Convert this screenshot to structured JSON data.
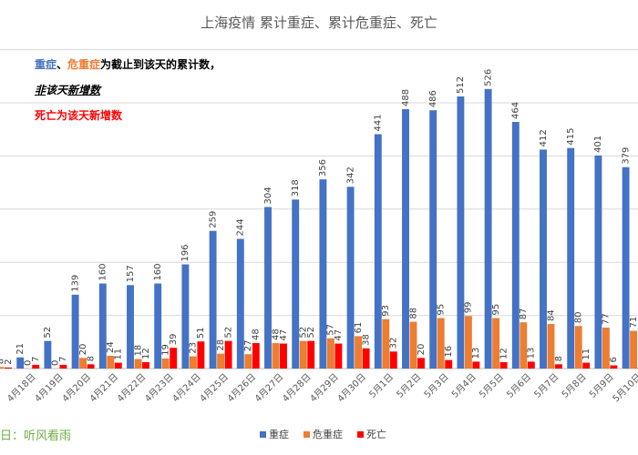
{
  "chart_data": {
    "type": "bar",
    "title": "上海疫情 累计重症、累计危重症、死亡",
    "categories": [
      "4月18日",
      "4月19日",
      "4月20日",
      "4月21日",
      "4月22日",
      "4月23日",
      "4月24日",
      "4月25日",
      "4月26日",
      "4月27日",
      "4月28日",
      "4月29日",
      "4月30日",
      "5月1日",
      "5月2日",
      "5月3日",
      "5月4日",
      "5月5日",
      "5月6日",
      "5月7日",
      "5月8日",
      "5月9日",
      "5月10日",
      "5月11日"
    ],
    "first_partial": {
      "values": [
        8,
        3,
        2
      ],
      "labels": [
        "1",
        "8",
        "2"
      ]
    },
    "series": [
      {
        "name": "重症",
        "color": "#4472C4",
        "values": [
          21,
          52,
          139,
          160,
          157,
          160,
          196,
          259,
          244,
          304,
          318,
          356,
          342,
          441,
          488,
          486,
          512,
          526,
          464,
          412,
          415,
          401,
          379,
          null
        ],
        "labels": [
          "21",
          "52",
          "139",
          "160",
          "157",
          "160",
          "196",
          "259",
          "244",
          "304",
          "318",
          "356",
          "342",
          "441",
          "488",
          "486",
          "512",
          "526",
          "464",
          "412",
          "415",
          "401",
          "379",
          ""
        ]
      },
      {
        "name": "危重症",
        "color": "#ED7D31",
        "values": [
          0,
          0,
          20,
          24,
          18,
          19,
          23,
          28,
          27,
          48,
          52,
          57,
          61,
          93,
          88,
          95,
          99,
          95,
          87,
          84,
          80,
          77,
          71,
          null
        ],
        "labels": [
          "0",
          "0",
          "20",
          "24",
          "18",
          "19",
          "23",
          "28",
          "27",
          "48",
          "52",
          "57",
          "61",
          "93",
          "88",
          "95",
          "99",
          "95",
          "87",
          "84",
          "80",
          "77",
          "71",
          ""
        ]
      },
      {
        "name": "死亡",
        "color": "#FF0000",
        "values": [
          7,
          7,
          8,
          11,
          12,
          39,
          51,
          52,
          48,
          47,
          52,
          47,
          38,
          32,
          20,
          16,
          13,
          12,
          13,
          8,
          11,
          6,
          2,
          null
        ],
        "labels": [
          "7",
          "7",
          "8",
          "11",
          "12",
          "39",
          "51",
          "52",
          "48",
          "47",
          "52",
          "47",
          "38",
          "32",
          "20",
          "16",
          "13",
          "12",
          "13",
          "8",
          "11",
          "6",
          "",
          ""
        ]
      }
    ],
    "ylim": [
      0,
      650
    ],
    "grid": true,
    "legend_position": "bottom-center"
  },
  "notes": {
    "line1_blue": "重症",
    "line1_sep": "、",
    "line1_orange": "危重症",
    "line1_black": "为截止到该天的",
    "line1_bold": "累计数",
    "line1_end": "，",
    "line2_a": "非",
    "line2_b": "该天",
    "line2_c": "新增数",
    "line3": "死亡为该天新增数"
  },
  "source": "日：听风看雨"
}
